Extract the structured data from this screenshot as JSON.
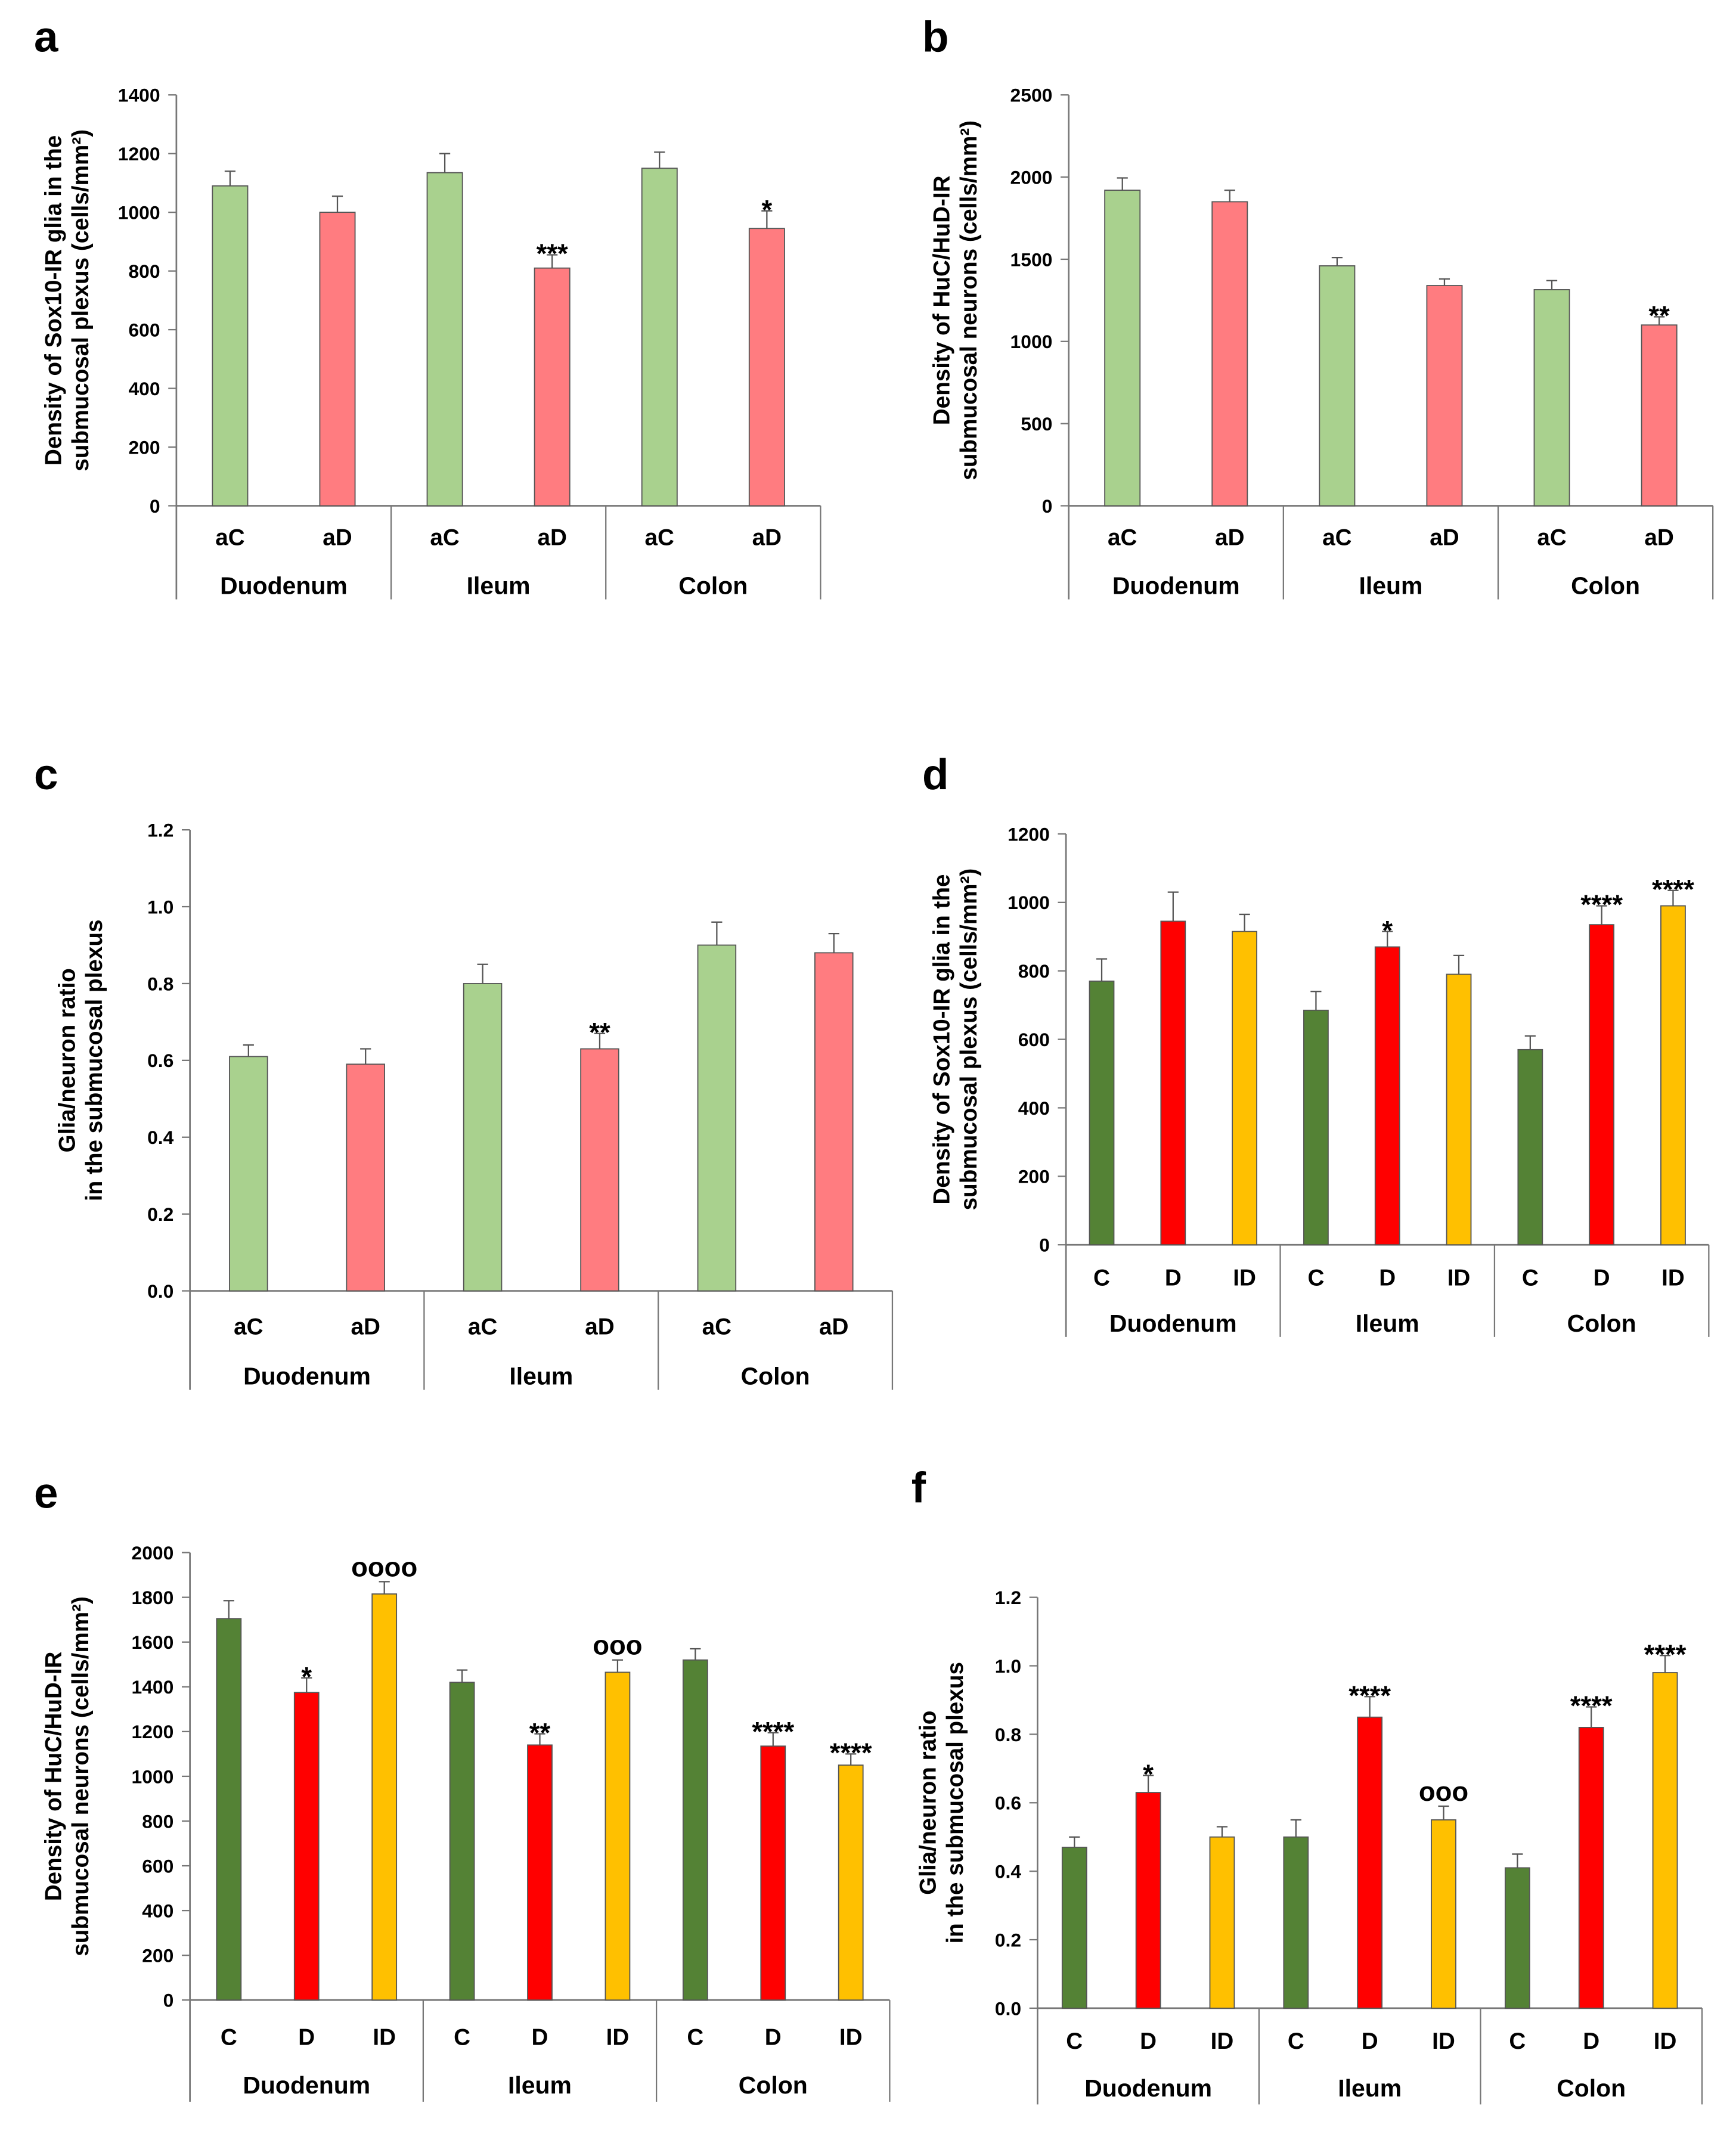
{
  "colors": {
    "aC": "#a9d18e",
    "aD": "#ff7c80",
    "C": "#548235",
    "D": "#ff0000",
    "ID": "#ffc000"
  },
  "chart_data": [
    {
      "panel": "a",
      "type": "bar",
      "groups": [
        "Duodenum",
        "Ileum",
        "Colon"
      ],
      "categories": [
        "aC",
        "aD"
      ],
      "ylabel": [
        "Density of Sox10-IR glia in the",
        "submucosal plexus (cells/mm²)"
      ],
      "ylim": [
        0,
        1400
      ],
      "ticks": [
        0,
        200,
        400,
        600,
        800,
        1000,
        1200,
        1400
      ],
      "tick_decimals": 0,
      "values": [
        [
          1090,
          1000
        ],
        [
          1135,
          810
        ],
        [
          1150,
          945
        ]
      ],
      "errors": [
        [
          50,
          55
        ],
        [
          65,
          45
        ],
        [
          55,
          60
        ]
      ],
      "annotations": [
        [
          "",
          ""
        ],
        [
          "",
          "***"
        ],
        [
          "",
          "*"
        ]
      ]
    },
    {
      "panel": "b",
      "type": "bar",
      "groups": [
        "Duodenum",
        "Ileum",
        "Colon"
      ],
      "categories": [
        "aC",
        "aD"
      ],
      "ylabel": [
        "Density of  HuC/HuD-IR",
        "submucosal neurons (cells/mm²)"
      ],
      "ylim": [
        0,
        2500
      ],
      "ticks": [
        0,
        500,
        1000,
        1500,
        2000,
        2500
      ],
      "tick_decimals": 0,
      "values": [
        [
          1920,
          1850
        ],
        [
          1460,
          1340
        ],
        [
          1315,
          1100
        ]
      ],
      "errors": [
        [
          75,
          70
        ],
        [
          50,
          40
        ],
        [
          55,
          50
        ]
      ],
      "annotations": [
        [
          "",
          ""
        ],
        [
          "",
          ""
        ],
        [
          "",
          "**"
        ]
      ]
    },
    {
      "panel": "c",
      "type": "bar",
      "groups": [
        "Duodenum",
        "Ileum",
        "Colon"
      ],
      "categories": [
        "aC",
        "aD"
      ],
      "ylabel": [
        "Glia/neuron ratio",
        "in the submucosal plexus"
      ],
      "ylim": [
        0,
        1.2
      ],
      "ticks": [
        0,
        0.2,
        0.4,
        0.6,
        0.8,
        1.0,
        1.2
      ],
      "tick_decimals": 1,
      "values": [
        [
          0.61,
          0.59
        ],
        [
          0.8,
          0.63
        ],
        [
          0.9,
          0.88
        ]
      ],
      "errors": [
        [
          0.03,
          0.04
        ],
        [
          0.05,
          0.04
        ],
        [
          0.06,
          0.05
        ]
      ],
      "annotations": [
        [
          "",
          ""
        ],
        [
          "",
          "**"
        ],
        [
          "",
          ""
        ]
      ]
    },
    {
      "panel": "d",
      "type": "bar",
      "groups": [
        "Duodenum",
        "Ileum",
        "Colon"
      ],
      "categories": [
        "C",
        "D",
        "ID"
      ],
      "ylabel": [
        "Density of Sox10-IR glia in the",
        "submucosal plexus (cells/mm²)"
      ],
      "ylim": [
        0,
        1200
      ],
      "ticks": [
        0,
        200,
        400,
        600,
        800,
        1000,
        1200
      ],
      "tick_decimals": 0,
      "values": [
        [
          770,
          945,
          915
        ],
        [
          685,
          870,
          790
        ],
        [
          570,
          935,
          990
        ]
      ],
      "errors": [
        [
          65,
          85,
          50
        ],
        [
          55,
          45,
          55
        ],
        [
          40,
          55,
          45
        ]
      ],
      "annotations": [
        [
          "",
          "",
          ""
        ],
        [
          "",
          "*",
          ""
        ],
        [
          "",
          "****",
          "****"
        ]
      ]
    },
    {
      "panel": "e",
      "type": "bar",
      "groups": [
        "Duodenum",
        "Ileum",
        "Colon"
      ],
      "categories": [
        "C",
        "D",
        "ID"
      ],
      "ylabel": [
        "Density of HuC/HuD-IR",
        "submucosal neurons (cells/mm²)"
      ],
      "ylim": [
        0,
        2000
      ],
      "ticks": [
        0,
        200,
        400,
        600,
        800,
        1000,
        1200,
        1400,
        1600,
        1800,
        2000
      ],
      "tick_decimals": 0,
      "values": [
        [
          1705,
          1375,
          1815
        ],
        [
          1420,
          1140,
          1465
        ],
        [
          1520,
          1135,
          1050
        ]
      ],
      "errors": [
        [
          80,
          65,
          55
        ],
        [
          55,
          50,
          55
        ],
        [
          50,
          60,
          50
        ]
      ],
      "annotations": [
        [
          "",
          "*",
          "oooo"
        ],
        [
          "",
          "**",
          "ooo"
        ],
        [
          "",
          "****",
          "****"
        ]
      ]
    },
    {
      "panel": "f",
      "type": "bar",
      "groups": [
        "Duodenum",
        "Ileum",
        "Colon"
      ],
      "categories": [
        "C",
        "D",
        "ID"
      ],
      "ylabel": [
        "Glia/neuron ratio",
        "in the submucosal plexus"
      ],
      "ylim": [
        0,
        1.2
      ],
      "ticks": [
        0,
        0.2,
        0.4,
        0.6,
        0.8,
        1.0,
        1.2
      ],
      "tick_decimals": 1,
      "values": [
        [
          0.47,
          0.63,
          0.5
        ],
        [
          0.5,
          0.85,
          0.55
        ],
        [
          0.41,
          0.82,
          0.98
        ]
      ],
      "errors": [
        [
          0.03,
          0.05,
          0.03
        ],
        [
          0.05,
          0.06,
          0.04
        ],
        [
          0.04,
          0.06,
          0.05
        ]
      ],
      "annotations": [
        [
          "",
          "*",
          ""
        ],
        [
          "",
          "****",
          "ooo"
        ],
        [
          "",
          "****",
          "****"
        ]
      ]
    }
  ]
}
